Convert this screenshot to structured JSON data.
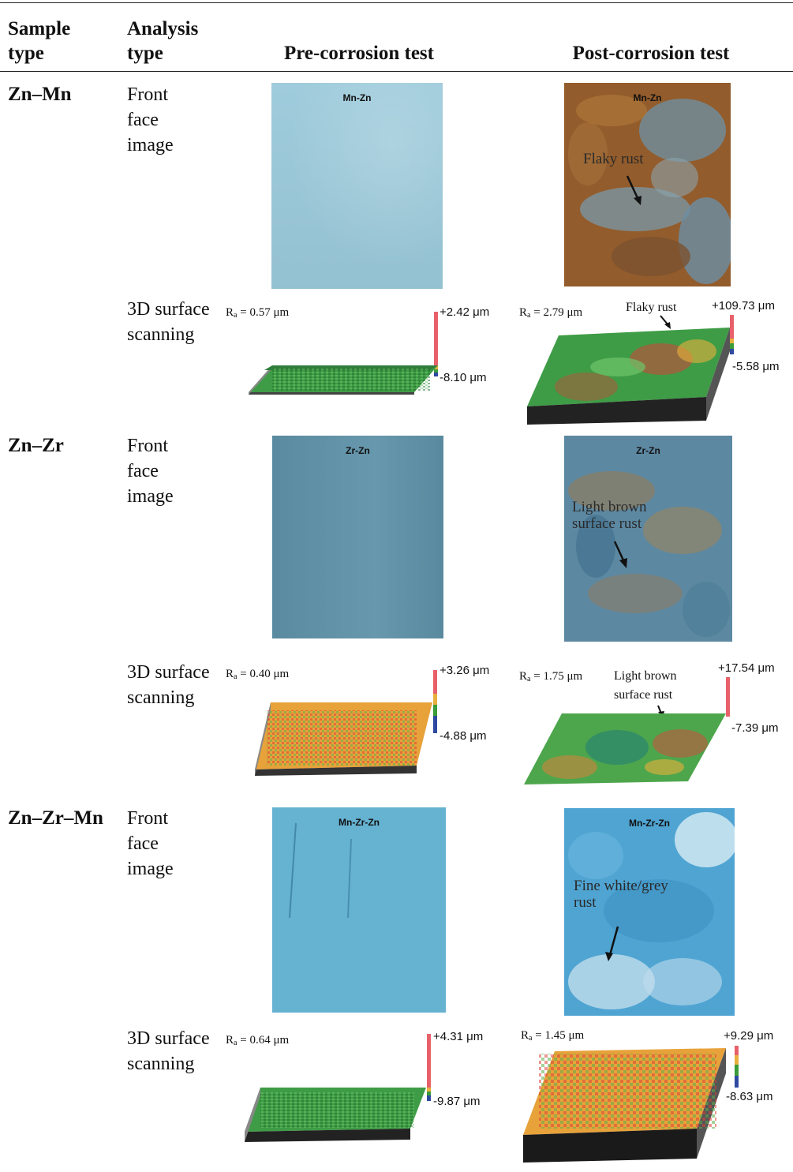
{
  "header": {
    "sample_type": "Sample type",
    "analysis_type": "Analysis type",
    "pre": "Pre-corrosion test",
    "post": "Post-corrosion test"
  },
  "analysis_labels": {
    "front": "Front face image",
    "scan": "3D surface scanning"
  },
  "rows": [
    {
      "sample": "Zn–Mn",
      "pre_photo_label": "Mn-Zn",
      "post_photo_label": "Mn-Zn",
      "post_photo_annotation": "Flaky rust",
      "pre_ra": "0.57 μm",
      "pre_max": "+2.42 μm",
      "pre_min": "-8.10 μm",
      "post_ra": "2.79 μm",
      "post_max": "+109.73 μm",
      "post_min": "-5.58 μm",
      "post_scan_annotation": "Flaky rust"
    },
    {
      "sample": "Zn–Zr",
      "pre_photo_label": "Zr-Zn",
      "post_photo_label": "Zr-Zn",
      "post_photo_annotation": "Light brown surface rust",
      "pre_ra": "0.40 μm",
      "pre_max": "+3.26 μm",
      "pre_min": "-4.88 μm",
      "post_ra": "1.75 μm",
      "post_max": "+17.54 μm",
      "post_min": "-7.39 μm",
      "post_scan_annotation": "Light brown surface rust"
    },
    {
      "sample": "Zn–Zr–Mn",
      "pre_photo_label": "Mn-Zr-Zn",
      "post_photo_label": "Mn-Zr-Zn",
      "post_photo_annotation": "Fine white/grey rust",
      "pre_ra": "0.64 μm",
      "pre_max": "+4.31 μm",
      "pre_min": "-9.87 μm",
      "post_ra": "1.45 μm",
      "post_max": "+9.29 μm",
      "post_min": "-8.63 μm",
      "post_scan_annotation": ""
    }
  ],
  "ra_prefix": "R",
  "ra_sub": "a",
  "colors": {
    "pre_mn": "#9ac9da",
    "pre_zr": "#5f92a8",
    "pre_zrmn": "#5eaece",
    "rust": "#8a5a2a",
    "post_zr": "#5b86a0",
    "post_zrmn": "#52a8d8"
  }
}
